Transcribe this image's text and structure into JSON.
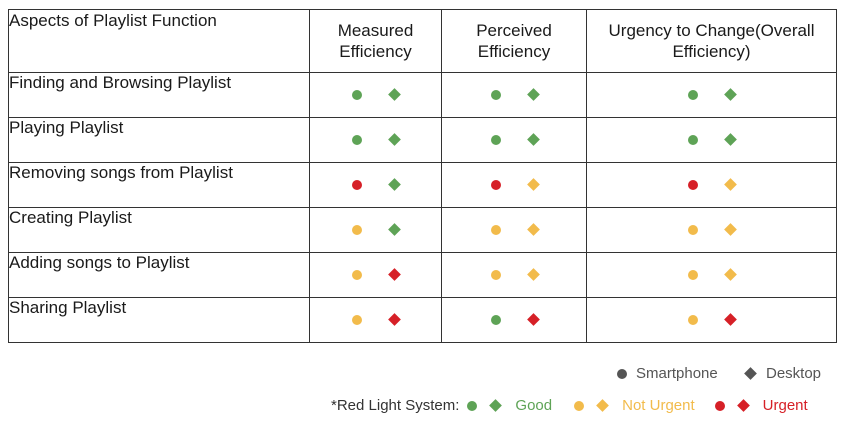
{
  "colors": {
    "good": "#5ea356",
    "not_urgent": "#f2bb4b",
    "urgent": "#d62027",
    "neutral": "#555555"
  },
  "table": {
    "headers": [
      "Aspects of Playlist Function",
      "Measured Efficiency",
      "Perceived Efficiency",
      "Urgency to Change(Overall Efficiency)"
    ],
    "rows": [
      {
        "aspect": "Finding and Browsing Playlist",
        "measured": [
          "good",
          "good"
        ],
        "perceived": [
          "good",
          "good"
        ],
        "urgency": [
          "good",
          "good"
        ]
      },
      {
        "aspect": "Playing Playlist",
        "measured": [
          "good",
          "good"
        ],
        "perceived": [
          "good",
          "good"
        ],
        "urgency": [
          "good",
          "good"
        ]
      },
      {
        "aspect": "Removing songs from Playlist",
        "measured": [
          "urgent",
          "good"
        ],
        "perceived": [
          "urgent",
          "not_urgent"
        ],
        "urgency": [
          "urgent",
          "not_urgent"
        ]
      },
      {
        "aspect": "Creating Playlist",
        "measured": [
          "not_urgent",
          "good"
        ],
        "perceived": [
          "not_urgent",
          "not_urgent"
        ],
        "urgency": [
          "not_urgent",
          "not_urgent"
        ]
      },
      {
        "aspect": "Adding songs to Playlist",
        "measured": [
          "not_urgent",
          "urgent"
        ],
        "perceived": [
          "not_urgent",
          "not_urgent"
        ],
        "urgency": [
          "not_urgent",
          "not_urgent"
        ]
      },
      {
        "aspect": "Sharing Playlist",
        "measured": [
          "not_urgent",
          "urgent"
        ],
        "perceived": [
          "good",
          "urgent"
        ],
        "urgency": [
          "not_urgent",
          "urgent"
        ]
      }
    ]
  },
  "legend": {
    "smartphone": "Smartphone",
    "desktop": "Desktop",
    "system_label": "*Red Light System:",
    "good": "Good",
    "not_urgent": "Not Urgent",
    "urgent": "Urgent"
  }
}
